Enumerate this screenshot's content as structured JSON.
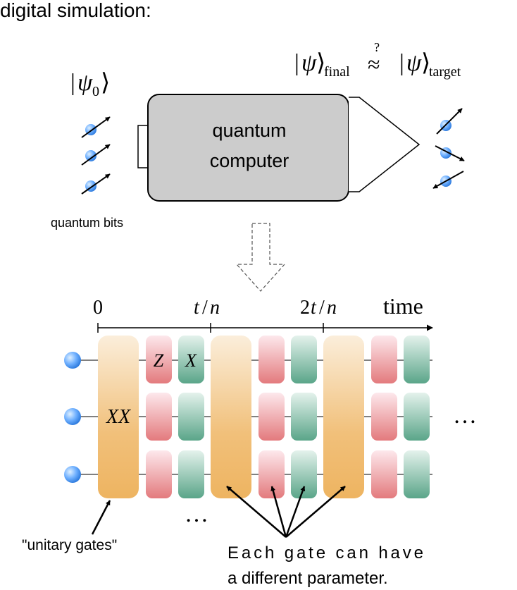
{
  "heading": "digital simulation:",
  "formula": {
    "psi": "ψ",
    "final_sub": "final",
    "approx_mark": "?",
    "approx": "≈",
    "target_sub": "target"
  },
  "initial_state": {
    "psi": "ψ",
    "sub": "0"
  },
  "computer": {
    "line1": "quantum",
    "line2": "computer"
  },
  "qubits_label": "quantum bits",
  "timeline": {
    "tick0": "0",
    "tick1_t": "t",
    "tick1_n": "n",
    "tick2_coef": "2",
    "tick2_t": "t",
    "tick2_n": "n",
    "axis_label": "time"
  },
  "gate_labels": {
    "z": "Z",
    "x": "X",
    "xx": "XX"
  },
  "ellipsis": "…",
  "annotations": {
    "unitary": "\"unitary gates\"",
    "param_line1": "Each gate can have",
    "param_line2": "a different parameter."
  },
  "colors": {
    "box_fill": "#cccccc",
    "qubit_blue": "#3d8ce8",
    "tall_gate_top": "#fbeedb",
    "tall_gate_bottom": "#eeb461",
    "red_gate_top": "#fde8ec",
    "red_gate_bottom": "#e37a7d",
    "green_gate_top": "#e4f2ec",
    "green_gate_bottom": "#5aa589"
  }
}
